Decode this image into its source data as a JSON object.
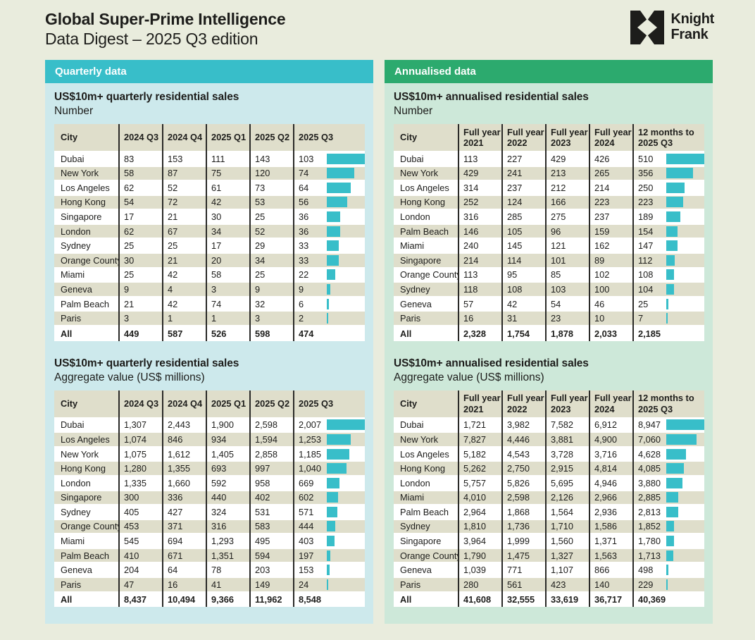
{
  "header": {
    "title": "Global Super-Prime Intelligence",
    "subtitle": "Data Digest – 2025 Q3 edition",
    "logo": {
      "line1": "Knight",
      "line2": "Frank"
    }
  },
  "colors": {
    "page_bg": "#e9ecdd",
    "text": "#1d1d1b",
    "bar": "#38bec9",
    "row_alt": "#dfdecb",
    "quarterly_accent": "#38bec9",
    "quarterly_bg": "#cde9ec",
    "annualised_accent": "#2caa6e",
    "annualised_bg": "#cde8d9"
  },
  "panels": [
    {
      "header": "Quarterly data",
      "accent": "#38bec9",
      "bg": "#cde9ec",
      "sections": [
        {
          "title": "US$10m+ quarterly residential sales",
          "subtitle": "Number",
          "columns": [
            "City",
            "2024 Q3",
            "2024 Q4",
            "2025 Q1",
            "2025 Q2",
            "2025 Q3"
          ],
          "bar_max": 103,
          "rows": [
            {
              "city": "Dubai",
              "values": [
                "83",
                "153",
                "111",
                "143",
                "103"
              ],
              "bar": 103
            },
            {
              "city": "New York",
              "values": [
                "58",
                "87",
                "75",
                "120",
                "74"
              ],
              "bar": 74
            },
            {
              "city": "Los Angeles",
              "values": [
                "62",
                "52",
                "61",
                "73",
                "64"
              ],
              "bar": 64
            },
            {
              "city": "Hong Kong",
              "values": [
                "54",
                "72",
                "42",
                "53",
                "56"
              ],
              "bar": 56
            },
            {
              "city": "Singapore",
              "values": [
                "17",
                "21",
                "30",
                "25",
                "36"
              ],
              "bar": 36
            },
            {
              "city": "London",
              "values": [
                "62",
                "67",
                "34",
                "52",
                "36"
              ],
              "bar": 36
            },
            {
              "city": "Sydney",
              "values": [
                "25",
                "25",
                "17",
                "29",
                "33"
              ],
              "bar": 33
            },
            {
              "city": "Orange County",
              "values": [
                "30",
                "21",
                "20",
                "34",
                "33"
              ],
              "bar": 33
            },
            {
              "city": "Miami",
              "values": [
                "25",
                "42",
                "58",
                "25",
                "22"
              ],
              "bar": 22
            },
            {
              "city": "Geneva",
              "values": [
                "9",
                "4",
                "3",
                "9",
                "9"
              ],
              "bar": 9
            },
            {
              "city": "Palm Beach",
              "values": [
                "21",
                "42",
                "74",
                "32",
                "6"
              ],
              "bar": 6
            },
            {
              "city": "Paris",
              "values": [
                "3",
                "1",
                "1",
                "3",
                "2"
              ],
              "bar": 2
            }
          ],
          "total": {
            "city": "All",
            "values": [
              "449",
              "587",
              "526",
              "598",
              "474"
            ]
          }
        },
        {
          "title": "US$10m+ quarterly residential sales",
          "subtitle": "Aggregate value (US$ millions)",
          "columns": [
            "City",
            "2024 Q3",
            "2024 Q4",
            "2025 Q1",
            "2025 Q2",
            "2025 Q3"
          ],
          "bar_max": 2007,
          "rows": [
            {
              "city": "Dubai",
              "values": [
                "1,307",
                "2,443",
                "1,900",
                "2,598",
                "2,007"
              ],
              "bar": 2007
            },
            {
              "city": "Los Angeles",
              "values": [
                "1,074",
                "846",
                "934",
                "1,594",
                "1,253"
              ],
              "bar": 1253
            },
            {
              "city": "New York",
              "values": [
                "1,075",
                "1,612",
                "1,405",
                "2,858",
                "1,185"
              ],
              "bar": 1185
            },
            {
              "city": "Hong Kong",
              "values": [
                "1,280",
                "1,355",
                "693",
                "997",
                "1,040"
              ],
              "bar": 1040
            },
            {
              "city": "London",
              "values": [
                "1,335",
                "1,660",
                "592",
                "958",
                "669"
              ],
              "bar": 669
            },
            {
              "city": "Singapore",
              "values": [
                "300",
                "336",
                "440",
                "402",
                "602"
              ],
              "bar": 602
            },
            {
              "city": "Sydney",
              "values": [
                "405",
                "427",
                "324",
                "531",
                "571"
              ],
              "bar": 571
            },
            {
              "city": "Orange County",
              "values": [
                "453",
                "371",
                "316",
                "583",
                "444"
              ],
              "bar": 444
            },
            {
              "city": "Miami",
              "values": [
                "545",
                "694",
                "1,293",
                "495",
                "403"
              ],
              "bar": 403
            },
            {
              "city": "Palm Beach",
              "values": [
                "410",
                "671",
                "1,351",
                "594",
                "197"
              ],
              "bar": 197
            },
            {
              "city": "Geneva",
              "values": [
                "204",
                "64",
                "78",
                "203",
                "153"
              ],
              "bar": 153
            },
            {
              "city": "Paris",
              "values": [
                "47",
                "16",
                "41",
                "149",
                "24"
              ],
              "bar": 24
            }
          ],
          "total": {
            "city": "All",
            "values": [
              "8,437",
              "10,494",
              "9,366",
              "11,962",
              "8,548"
            ]
          }
        }
      ]
    },
    {
      "header": "Annualised data",
      "accent": "#2caa6e",
      "bg": "#cde8d9",
      "sections": [
        {
          "title": "US$10m+ annualised residential sales",
          "subtitle": "Number",
          "columns": [
            "City",
            "Full year\n2021",
            "Full year\n2022",
            "Full year\n2023",
            "Full year\n2024",
            "12 months to\n2025 Q3"
          ],
          "bar_max": 510,
          "rows": [
            {
              "city": "Dubai",
              "values": [
                "113",
                "227",
                "429",
                "426",
                "510"
              ],
              "bar": 510
            },
            {
              "city": "New York",
              "values": [
                "429",
                "241",
                "213",
                "265",
                "356"
              ],
              "bar": 356
            },
            {
              "city": "Los Angeles",
              "values": [
                "314",
                "237",
                "212",
                "214",
                "250"
              ],
              "bar": 250
            },
            {
              "city": "Hong Kong",
              "values": [
                "252",
                "124",
                "166",
                "223",
                "223"
              ],
              "bar": 223
            },
            {
              "city": "London",
              "values": [
                "316",
                "285",
                "275",
                "237",
                "189"
              ],
              "bar": 189
            },
            {
              "city": "Palm Beach",
              "values": [
                "146",
                "105",
                "96",
                "159",
                "154"
              ],
              "bar": 154
            },
            {
              "city": "Miami",
              "values": [
                "240",
                "145",
                "121",
                "162",
                "147"
              ],
              "bar": 147
            },
            {
              "city": "Singapore",
              "values": [
                "214",
                "114",
                "101",
                "89",
                "112"
              ],
              "bar": 112
            },
            {
              "city": "Orange County",
              "values": [
                "113",
                "95",
                "85",
                "102",
                "108"
              ],
              "bar": 108
            },
            {
              "city": "Sydney",
              "values": [
                "118",
                "108",
                "103",
                "100",
                "104"
              ],
              "bar": 104
            },
            {
              "city": "Geneva",
              "values": [
                "57",
                "42",
                "54",
                "46",
                "25"
              ],
              "bar": 25
            },
            {
              "city": "Paris",
              "values": [
                "16",
                "31",
                "23",
                "10",
                "7"
              ],
              "bar": 7
            }
          ],
          "total": {
            "city": "All",
            "values": [
              "2,328",
              "1,754",
              "1,878",
              "2,033",
              "2,185"
            ]
          }
        },
        {
          "title": "US$10m+ annualised residential sales",
          "subtitle": "Aggregate value (US$ millions)",
          "columns": [
            "City",
            "Full year\n2021",
            "Full year\n2022",
            "Full year\n2023",
            "Full year\n2024",
            "12 months to\n2025 Q3"
          ],
          "bar_max": 8947,
          "rows": [
            {
              "city": "Dubai",
              "values": [
                "1,721",
                "3,982",
                "7,582",
                "6,912",
                "8,947"
              ],
              "bar": 8947
            },
            {
              "city": "New York",
              "values": [
                "7,827",
                "4,446",
                "3,881",
                "4,900",
                "7,060"
              ],
              "bar": 7060
            },
            {
              "city": "Los Angeles",
              "values": [
                "5,182",
                "4,543",
                "3,728",
                "3,716",
                "4,628"
              ],
              "bar": 4628
            },
            {
              "city": "Hong Kong",
              "values": [
                "5,262",
                "2,750",
                "2,915",
                "4,814",
                "4,085"
              ],
              "bar": 4085
            },
            {
              "city": "London",
              "values": [
                "5,757",
                "5,826",
                "5,695",
                "4,946",
                "3,880"
              ],
              "bar": 3880
            },
            {
              "city": "Miami",
              "values": [
                "4,010",
                "2,598",
                "2,126",
                "2,966",
                "2,885"
              ],
              "bar": 2885
            },
            {
              "city": "Palm Beach",
              "values": [
                "2,964",
                "1,868",
                "1,564",
                "2,936",
                "2,813"
              ],
              "bar": 2813
            },
            {
              "city": "Sydney",
              "values": [
                "1,810",
                "1,736",
                "1,710",
                "1,586",
                "1,852"
              ],
              "bar": 1852
            },
            {
              "city": "Singapore",
              "values": [
                "3,964",
                "1,999",
                "1,560",
                "1,371",
                "1,780"
              ],
              "bar": 1780
            },
            {
              "city": "Orange County",
              "values": [
                "1,790",
                "1,475",
                "1,327",
                "1,563",
                "1,713"
              ],
              "bar": 1713
            },
            {
              "city": "Geneva",
              "values": [
                "1,039",
                "771",
                "1,107",
                "866",
                "498"
              ],
              "bar": 498
            },
            {
              "city": "Paris",
              "values": [
                "280",
                "561",
                "423",
                "140",
                "229"
              ],
              "bar": 229
            }
          ],
          "total": {
            "city": "All",
            "values": [
              "41,608",
              "32,555",
              "33,619",
              "36,717",
              "40,369"
            ]
          }
        }
      ]
    }
  ]
}
